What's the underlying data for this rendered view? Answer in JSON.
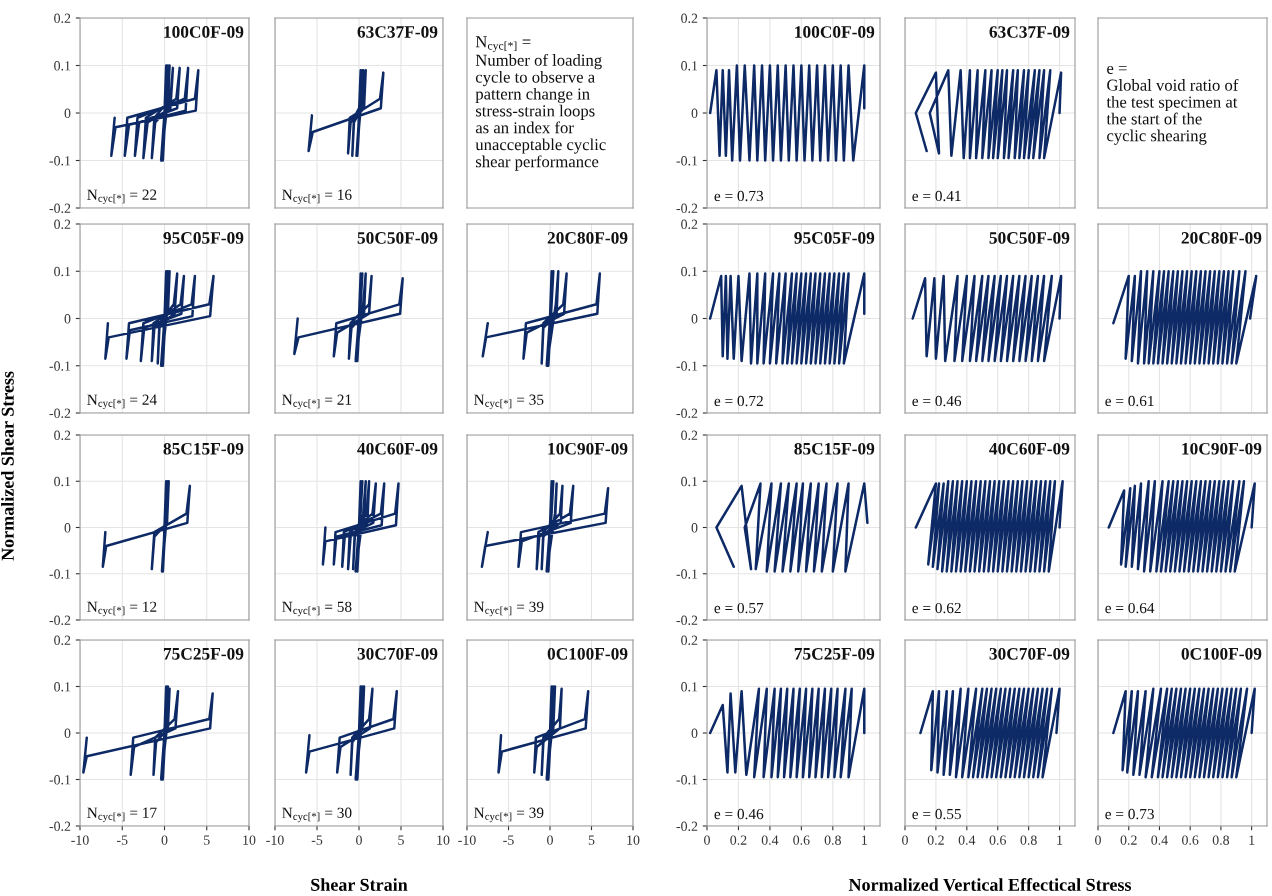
{
  "chart_data": [
    {
      "type": "line",
      "title": "100C0F-09",
      "annotations": [
        "N$_{cyc[*]}$ = 22"
      ],
      "xlim": [
        -10,
        10
      ],
      "ylim": [
        -0.2,
        0.2
      ],
      "xticks": [
        -10,
        -5,
        0,
        5,
        10
      ],
      "yticks": [
        -0.2,
        -0.1,
        0,
        0.1,
        0.2
      ],
      "grid": true,
      "tick_labels": "y",
      "color": "#0d2a66",
      "x": [
        0,
        0.2,
        -0.2,
        0.4,
        -0.4,
        0.4,
        0.6,
        0.4,
        -1.1,
        -1.5,
        -1.2,
        0.7,
        1.0,
        0.7,
        -2.0,
        -2.5,
        -2.2,
        1.4,
        1.8,
        1.5,
        -3.0,
        -3.5,
        -3.2,
        2.4,
        2.8,
        2.5,
        -4.2,
        -4.7,
        -4.4,
        3.6,
        4.0,
        3.7,
        -5.8,
        -6.3,
        -5.9
      ],
      "values": [
        0,
        0.1,
        -0.1,
        0.1,
        -0.1,
        0.03,
        0.1,
        0.01,
        -0.02,
        -0.095,
        -0.01,
        0.03,
        0.095,
        0.01,
        -0.02,
        -0.095,
        -0.01,
        0.03,
        0.095,
        0.01,
        -0.02,
        -0.09,
        -0.01,
        0.03,
        0.095,
        0.005,
        -0.025,
        -0.09,
        -0.01,
        0.03,
        0.09,
        0.005,
        -0.03,
        -0.09,
        -0.01
      ]
    },
    {
      "type": "line",
      "title": "63C37F-09",
      "annotations": [
        "N$_{cyc[*]}$ = 16"
      ],
      "xlim": [
        -10,
        10
      ],
      "ylim": [
        -0.2,
        0.2
      ],
      "xticks": [
        -10,
        -5,
        0,
        5,
        10
      ],
      "yticks": [
        -0.2,
        -0.1,
        0,
        0.1,
        0.2
      ],
      "grid": true,
      "tick_labels": false,
      "color": "#0d2a66",
      "x": [
        0,
        0.2,
        -0.2,
        0.4,
        -0.3,
        0.3,
        0.5,
        0.3,
        -0.6,
        -0.8,
        -0.6,
        0.6,
        0.8,
        0.6,
        -1.0,
        -1.3,
        -1.1,
        2.5,
        2.9,
        2.6,
        -5.5,
        -6.0,
        -5.6
      ],
      "values": [
        0,
        0.09,
        -0.09,
        0.09,
        -0.09,
        0.03,
        0.09,
        0.01,
        -0.02,
        -0.09,
        -0.01,
        0.03,
        0.09,
        0.01,
        -0.02,
        -0.085,
        -0.01,
        0.03,
        0.085,
        0.01,
        -0.04,
        -0.08,
        -0.005
      ]
    },
    {
      "type": "other",
      "annotations": [
        "N$_{cyc[*]}$ =",
        "Number of loading\ncycle to observe a\npattern change in\nstress-strain loops\nas an index for\nunacceptable cyclic\nshear performance"
      ]
    },
    {
      "type": "line",
      "title": "100C0F-09",
      "annotations": [
        "e = 0.73"
      ],
      "xlim": [
        0,
        1.1
      ],
      "ylim": [
        -0.2,
        0.2
      ],
      "xticks": [
        0,
        0.2,
        0.4,
        0.6,
        0.8,
        1
      ],
      "yticks": [
        -0.2,
        -0.1,
        0,
        0.1,
        0.2
      ],
      "grid": true,
      "tick_labels": "y",
      "color": "#0d2a66",
      "x": [
        1.0,
        1.0,
        0.93,
        0.9,
        0.87,
        0.85,
        0.82,
        0.8,
        0.77,
        0.75,
        0.72,
        0.7,
        0.67,
        0.65,
        0.62,
        0.6,
        0.57,
        0.55,
        0.52,
        0.5,
        0.47,
        0.45,
        0.42,
        0.4,
        0.37,
        0.35,
        0.32,
        0.3,
        0.27,
        0.24,
        0.21,
        0.19,
        0.16,
        0.14,
        0.12,
        0.1,
        0.08,
        0.06,
        0.02
      ],
      "values": [
        0.01,
        0.1,
        -0.1,
        0.1,
        -0.1,
        0.1,
        -0.1,
        0.1,
        -0.1,
        0.1,
        -0.1,
        0.1,
        -0.1,
        0.1,
        -0.1,
        0.1,
        -0.1,
        0.1,
        -0.1,
        0.1,
        -0.1,
        0.1,
        -0.1,
        0.1,
        -0.1,
        0.1,
        -0.1,
        0.1,
        -0.1,
        0.1,
        -0.1,
        0.1,
        -0.1,
        0.09,
        -0.09,
        0.09,
        -0.09,
        0.09,
        0.0
      ]
    },
    {
      "type": "line",
      "title": "63C37F-09",
      "annotations": [
        "e = 0.41"
      ],
      "xlim": [
        0,
        1.1
      ],
      "ylim": [
        -0.2,
        0.2
      ],
      "xticks": [
        0,
        0.2,
        0.4,
        0.6,
        0.8,
        1
      ],
      "yticks": [
        -0.2,
        -0.1,
        0,
        0.1,
        0.2
      ],
      "grid": true,
      "tick_labels": false,
      "color": "#0d2a66",
      "x": [
        1.0,
        1.01,
        0.9,
        0.94,
        0.87,
        0.9,
        0.83,
        0.87,
        0.8,
        0.84,
        0.77,
        0.8,
        0.74,
        0.77,
        0.71,
        0.73,
        0.67,
        0.7,
        0.64,
        0.66,
        0.6,
        0.63,
        0.57,
        0.6,
        0.54,
        0.56,
        0.5,
        0.52,
        0.46,
        0.47,
        0.42,
        0.42,
        0.38,
        0.36,
        0.3,
        0.28,
        0.16,
        0.22,
        0.2,
        0.07,
        0.14
      ],
      "values": [
        0.0,
        0.085,
        -0.095,
        0.09,
        -0.095,
        0.09,
        -0.095,
        0.09,
        -0.095,
        0.09,
        -0.095,
        0.09,
        -0.095,
        0.09,
        -0.095,
        0.09,
        -0.095,
        0.09,
        -0.095,
        0.09,
        -0.095,
        0.09,
        -0.095,
        0.09,
        -0.095,
        0.09,
        -0.095,
        0.09,
        -0.095,
        0.09,
        -0.095,
        0.09,
        -0.095,
        0.09,
        -0.09,
        0.09,
        0.0,
        -0.085,
        0.085,
        0.0,
        -0.08
      ]
    },
    {
      "type": "other",
      "annotations": [
        "e =",
        "Global void ratio of\nthe test specimen at\nthe start of the\ncyclic shearing"
      ]
    },
    {
      "type": "line",
      "title": "95C05F-09",
      "annotations": [
        "N$_{cyc[*]}$ = 24"
      ],
      "ylabel": "Normalized Shear Stress",
      "xlim": [
        -10,
        10
      ],
      "ylim": [
        -0.2,
        0.2
      ],
      "xticks": [
        -10,
        -5,
        0,
        5,
        10
      ],
      "yticks": [
        -0.2,
        -0.1,
        0,
        0.1,
        0.2
      ],
      "grid": true,
      "tick_labels": "y",
      "color": "#0d2a66",
      "x": [
        0,
        0.2,
        -0.2,
        0.4,
        -0.4,
        0.4,
        0.6,
        0.4,
        -0.6,
        -0.8,
        -0.6,
        1.1,
        1.5,
        1.2,
        -1.2,
        -1.5,
        -1.3,
        1.9,
        2.3,
        2.0,
        -2.4,
        -2.8,
        -2.5,
        3.2,
        3.6,
        3.3,
        -4.1,
        -4.5,
        -4.2,
        5.3,
        5.8,
        5.4,
        -6.6,
        -7.0,
        -6.7
      ],
      "values": [
        0,
        0.1,
        -0.1,
        0.1,
        -0.1,
        0.03,
        0.1,
        0.01,
        -0.02,
        -0.095,
        -0.01,
        0.03,
        0.095,
        0.01,
        -0.02,
        -0.09,
        -0.01,
        0.03,
        0.09,
        0.01,
        -0.02,
        -0.09,
        -0.01,
        0.03,
        0.09,
        0.005,
        -0.025,
        -0.085,
        -0.01,
        0.03,
        0.09,
        0.005,
        -0.04,
        -0.085,
        -0.01
      ]
    },
    {
      "type": "line",
      "title": "50C50F-09",
      "annotations": [
        "N$_{cyc[*]}$ = 21"
      ],
      "xlim": [
        -10,
        10
      ],
      "ylim": [
        -0.2,
        0.2
      ],
      "xticks": [
        -10,
        -5,
        0,
        5,
        10
      ],
      "yticks": [
        -0.2,
        -0.1,
        0,
        0.1,
        0.2
      ],
      "grid": true,
      "tick_labels": false,
      "color": "#0d2a66",
      "x": [
        0,
        0.2,
        -0.2,
        0.4,
        -0.4,
        0.5,
        0.8,
        0.6,
        -0.9,
        -1.2,
        -1.0,
        1.2,
        1.5,
        1.2,
        -2.6,
        -3.0,
        -2.7,
        4.8,
        5.2,
        4.9,
        -7.2,
        -7.7,
        -7.3
      ],
      "values": [
        0,
        0.095,
        -0.09,
        0.095,
        -0.09,
        0.03,
        0.095,
        0.01,
        -0.02,
        -0.085,
        -0.01,
        0.03,
        0.09,
        0.01,
        -0.03,
        -0.08,
        -0.01,
        0.03,
        0.085,
        0.01,
        -0.04,
        -0.075,
        0.0
      ]
    },
    {
      "type": "line",
      "title": "20C80F-09",
      "annotations": [
        "N$_{cyc[*]}$ = 35"
      ],
      "xlim": [
        -10,
        10
      ],
      "ylim": [
        -0.2,
        0.2
      ],
      "xticks": [
        -10,
        -5,
        0,
        5,
        10
      ],
      "yticks": [
        -0.2,
        -0.1,
        0,
        0.1,
        0.2
      ],
      "grid": true,
      "tick_labels": false,
      "color": "#0d2a66",
      "x": [
        0,
        0.2,
        -0.2,
        0.4,
        -0.4,
        0.7,
        1.0,
        0.8,
        -0.8,
        -1.0,
        -0.8,
        1.6,
        2.0,
        1.7,
        -2.8,
        -3.2,
        -2.9,
        5.6,
        6.0,
        5.7,
        -7.7,
        -8.1,
        -7.5
      ],
      "values": [
        0,
        0.1,
        -0.1,
        0.1,
        -0.1,
        0.03,
        0.1,
        0.01,
        -0.02,
        -0.095,
        -0.01,
        0.03,
        0.095,
        0.01,
        -0.03,
        -0.085,
        -0.01,
        0.03,
        0.095,
        0.01,
        -0.04,
        -0.08,
        -0.01
      ]
    },
    {
      "type": "line",
      "title": "95C05F-09",
      "annotations": [
        "e = 0.72"
      ],
      "xlim": [
        0,
        1.1
      ],
      "ylim": [
        -0.2,
        0.2
      ],
      "xticks": [
        0,
        0.2,
        0.4,
        0.6,
        0.8,
        1
      ],
      "yticks": [
        -0.2,
        -0.1,
        0,
        0.1,
        0.2
      ],
      "grid": true,
      "tick_labels": "y",
      "color": "#0d2a66",
      "x": [
        1.0,
        1.0,
        0.87,
        0.9,
        0.84,
        0.87,
        0.81,
        0.84,
        0.78,
        0.81,
        0.75,
        0.78,
        0.72,
        0.75,
        0.69,
        0.72,
        0.66,
        0.69,
        0.63,
        0.66,
        0.6,
        0.63,
        0.57,
        0.6,
        0.54,
        0.57,
        0.51,
        0.54,
        0.48,
        0.5,
        0.44,
        0.46,
        0.4,
        0.42,
        0.36,
        0.37,
        0.32,
        0.32,
        0.28,
        0.27,
        0.22,
        0.2,
        0.17,
        0.15,
        0.13,
        0.12,
        0.1,
        0.09,
        0.02
      ],
      "values": [
        0.01,
        0.095,
        -0.095,
        0.095,
        -0.095,
        0.095,
        -0.095,
        0.095,
        -0.095,
        0.095,
        -0.095,
        0.095,
        -0.095,
        0.095,
        -0.095,
        0.095,
        -0.095,
        0.095,
        -0.095,
        0.095,
        -0.095,
        0.095,
        -0.095,
        0.095,
        -0.095,
        0.095,
        -0.095,
        0.095,
        -0.095,
        0.095,
        -0.095,
        0.095,
        -0.095,
        0.095,
        -0.095,
        0.095,
        -0.095,
        0.095,
        -0.095,
        0.095,
        -0.09,
        0.09,
        -0.085,
        0.09,
        -0.085,
        0.09,
        -0.08,
        0.09,
        0.0
      ]
    },
    {
      "type": "line",
      "title": "50C50F-09",
      "annotations": [
        "e = 0.46"
      ],
      "xlim": [
        0,
        1.1
      ],
      "ylim": [
        -0.2,
        0.2
      ],
      "xticks": [
        0,
        0.2,
        0.4,
        0.6,
        0.8,
        1
      ],
      "yticks": [
        -0.2,
        -0.1,
        0,
        0.1,
        0.2
      ],
      "grid": true,
      "tick_labels": false,
      "color": "#0d2a66",
      "x": [
        1.0,
        1.01,
        0.9,
        0.95,
        0.86,
        0.9,
        0.82,
        0.86,
        0.78,
        0.82,
        0.74,
        0.78,
        0.7,
        0.74,
        0.66,
        0.7,
        0.62,
        0.66,
        0.58,
        0.62,
        0.54,
        0.58,
        0.5,
        0.54,
        0.46,
        0.5,
        0.42,
        0.45,
        0.37,
        0.4,
        0.32,
        0.34,
        0.26,
        0.25,
        0.2,
        0.19,
        0.14,
        0.13,
        0.05
      ],
      "values": [
        0.0,
        0.09,
        -0.09,
        0.09,
        -0.09,
        0.09,
        -0.09,
        0.09,
        -0.09,
        0.09,
        -0.09,
        0.09,
        -0.09,
        0.09,
        -0.09,
        0.09,
        -0.09,
        0.09,
        -0.09,
        0.09,
        -0.09,
        0.09,
        -0.09,
        0.09,
        -0.09,
        0.09,
        -0.09,
        0.09,
        -0.09,
        0.09,
        -0.09,
        0.09,
        -0.09,
        0.09,
        -0.085,
        0.085,
        -0.08,
        0.085,
        0.0
      ]
    },
    {
      "type": "line",
      "title": "20C80F-09",
      "annotations": [
        "e = 0.61"
      ],
      "xlim": [
        0,
        1.1
      ],
      "ylim": [
        -0.2,
        0.2
      ],
      "xticks": [
        0,
        0.2,
        0.4,
        0.6,
        0.8,
        1
      ],
      "yticks": [
        -0.2,
        -0.1,
        0,
        0.1,
        0.2
      ],
      "grid": true,
      "tick_labels": false,
      "color": "#0d2a66",
      "x": [
        0.99,
        1.03,
        0.9,
        0.96,
        0.87,
        0.92,
        0.84,
        0.88,
        0.81,
        0.85,
        0.78,
        0.82,
        0.75,
        0.79,
        0.72,
        0.76,
        0.69,
        0.73,
        0.66,
        0.7,
        0.63,
        0.67,
        0.6,
        0.64,
        0.57,
        0.61,
        0.54,
        0.58,
        0.51,
        0.55,
        0.48,
        0.52,
        0.45,
        0.49,
        0.42,
        0.46,
        0.39,
        0.43,
        0.36,
        0.4,
        0.33,
        0.36,
        0.3,
        0.32,
        0.26,
        0.28,
        0.22,
        0.24,
        0.18,
        0.2,
        0.1
      ],
      "values": [
        0.0,
        0.09,
        -0.095,
        0.1,
        -0.095,
        0.1,
        -0.095,
        0.1,
        -0.095,
        0.1,
        -0.095,
        0.1,
        -0.095,
        0.1,
        -0.095,
        0.1,
        -0.095,
        0.1,
        -0.095,
        0.1,
        -0.095,
        0.1,
        -0.095,
        0.1,
        -0.095,
        0.1,
        -0.095,
        0.1,
        -0.095,
        0.1,
        -0.095,
        0.1,
        -0.095,
        0.1,
        -0.095,
        0.1,
        -0.095,
        0.1,
        -0.095,
        0.1,
        -0.095,
        0.1,
        -0.095,
        0.1,
        -0.095,
        0.1,
        -0.09,
        0.09,
        -0.085,
        0.09,
        -0.01
      ]
    },
    {
      "type": "line",
      "title": "85C15F-09",
      "annotations": [
        "N$_{cyc[*]}$ = 12"
      ],
      "xlim": [
        -10,
        10
      ],
      "ylim": [
        -0.2,
        0.2
      ],
      "xticks": [
        -10,
        -5,
        0,
        5,
        10
      ],
      "yticks": [
        -0.2,
        -0.1,
        0,
        0.1,
        0.2
      ],
      "grid": true,
      "tick_labels": "y",
      "color": "#0d2a66",
      "x": [
        0,
        0.2,
        -0.2,
        0.4,
        -0.3,
        0.3,
        0.5,
        0.3,
        -1.2,
        -1.5,
        -1.2,
        2.6,
        3.0,
        2.7,
        -6.9,
        -7.3,
        -7.0
      ],
      "values": [
        0,
        0.1,
        -0.095,
        0.1,
        -0.095,
        0.03,
        0.1,
        0.01,
        -0.02,
        -0.09,
        -0.01,
        0.03,
        0.09,
        0.01,
        -0.04,
        -0.085,
        -0.01
      ]
    },
    {
      "type": "line",
      "title": "40C60F-09",
      "annotations": [
        "N$_{cyc[*]}$ = 58"
      ],
      "xlim": [
        -10,
        10
      ],
      "ylim": [
        -0.2,
        0.2
      ],
      "xticks": [
        -10,
        -5,
        0,
        5,
        10
      ],
      "yticks": [
        -0.2,
        -0.1,
        0,
        0.1,
        0.2
      ],
      "grid": true,
      "tick_labels": false,
      "color": "#0d2a66",
      "x": [
        0,
        0.2,
        -0.2,
        0.4,
        -0.4,
        0.5,
        0.8,
        0.6,
        -0.5,
        -0.7,
        -0.5,
        0.9,
        1.2,
        1.0,
        -1.0,
        -1.3,
        -1.1,
        1.6,
        2.0,
        1.7,
        -1.7,
        -2.0,
        -1.8,
        2.6,
        3.0,
        2.7,
        -2.7,
        -3.0,
        -2.8,
        4.3,
        4.7,
        4.4,
        -4.0,
        -4.3,
        -4.0
      ],
      "values": [
        0,
        0.1,
        -0.095,
        0.1,
        -0.095,
        0.03,
        0.1,
        0.01,
        -0.02,
        -0.09,
        -0.01,
        0.03,
        0.1,
        0.01,
        -0.02,
        -0.09,
        -0.01,
        0.03,
        0.095,
        0.01,
        -0.02,
        -0.085,
        -0.01,
        0.03,
        0.095,
        0.005,
        -0.02,
        -0.08,
        -0.01,
        0.03,
        0.095,
        0.005,
        -0.03,
        -0.08,
        0.0
      ]
    },
    {
      "type": "line",
      "title": "10C90F-09",
      "annotations": [
        "N$_{cyc[*]}$ = 39"
      ],
      "xlim": [
        -10,
        10
      ],
      "ylim": [
        -0.2,
        0.2
      ],
      "xticks": [
        -10,
        -5,
        0,
        5,
        10
      ],
      "yticks": [
        -0.2,
        -0.1,
        0,
        0.1,
        0.2
      ],
      "grid": true,
      "tick_labels": false,
      "color": "#0d2a66",
      "x": [
        0,
        0.2,
        -0.2,
        0.4,
        -0.4,
        0.6,
        0.8,
        0.6,
        -0.8,
        -1.0,
        -0.8,
        1.2,
        1.5,
        1.3,
        -1.3,
        -1.6,
        -1.4,
        2.4,
        2.8,
        2.5,
        -3.4,
        -3.8,
        -3.5,
        6.6,
        7.0,
        6.7,
        -7.8,
        -8.2,
        -7.5
      ],
      "values": [
        0,
        0.1,
        -0.095,
        0.1,
        -0.095,
        0.03,
        0.095,
        0.01,
        -0.02,
        -0.09,
        -0.01,
        0.03,
        0.09,
        0.01,
        -0.02,
        -0.09,
        -0.01,
        0.03,
        0.09,
        0.01,
        -0.03,
        -0.085,
        -0.01,
        0.03,
        0.085,
        0.01,
        -0.04,
        -0.085,
        -0.01
      ]
    },
    {
      "type": "line",
      "title": "85C15F-09",
      "annotations": [
        "e = 0.57"
      ],
      "xlim": [
        0,
        1.1
      ],
      "ylim": [
        -0.2,
        0.2
      ],
      "xticks": [
        0,
        0.2,
        0.4,
        0.6,
        0.8,
        1
      ],
      "yticks": [
        -0.2,
        -0.1,
        0,
        0.1,
        0.2
      ],
      "grid": true,
      "tick_labels": "y",
      "color": "#0d2a66",
      "x": [
        1.02,
        1.0,
        0.88,
        0.9,
        0.8,
        0.83,
        0.73,
        0.76,
        0.68,
        0.71,
        0.63,
        0.66,
        0.58,
        0.61,
        0.53,
        0.57,
        0.48,
        0.52,
        0.43,
        0.47,
        0.38,
        0.41,
        0.31,
        0.34,
        0.24,
        0.28,
        0.22,
        0.06,
        0.17
      ],
      "values": [
        0.01,
        0.095,
        -0.095,
        0.095,
        -0.095,
        0.095,
        -0.095,
        0.095,
        -0.095,
        0.095,
        -0.095,
        0.095,
        -0.095,
        0.095,
        -0.095,
        0.095,
        -0.095,
        0.095,
        -0.095,
        0.095,
        -0.095,
        0.095,
        -0.09,
        0.095,
        0.0,
        -0.09,
        0.09,
        0.0,
        -0.085
      ]
    },
    {
      "type": "line",
      "title": "40C60F-09",
      "annotations": [
        "e = 0.62"
      ],
      "xlim": [
        0,
        1.1
      ],
      "ylim": [
        -0.2,
        0.2
      ],
      "xticks": [
        0,
        0.2,
        0.4,
        0.6,
        0.8,
        1
      ],
      "yticks": [
        -0.2,
        -0.1,
        0,
        0.1,
        0.2
      ],
      "grid": true,
      "tick_labels": false,
      "color": "#0d2a66",
      "x": [
        1.0,
        1.02,
        0.93,
        0.97,
        0.9,
        0.94,
        0.87,
        0.91,
        0.84,
        0.88,
        0.81,
        0.85,
        0.78,
        0.82,
        0.75,
        0.79,
        0.72,
        0.76,
        0.69,
        0.73,
        0.66,
        0.7,
        0.63,
        0.67,
        0.6,
        0.64,
        0.57,
        0.61,
        0.54,
        0.58,
        0.51,
        0.55,
        0.48,
        0.52,
        0.45,
        0.49,
        0.42,
        0.46,
        0.39,
        0.43,
        0.36,
        0.4,
        0.33,
        0.37,
        0.3,
        0.34,
        0.27,
        0.31,
        0.24,
        0.28,
        0.21,
        0.25,
        0.18,
        0.22,
        0.15,
        0.2,
        0.07
      ],
      "values": [
        0.0,
        0.1,
        -0.095,
        0.1,
        -0.095,
        0.1,
        -0.095,
        0.1,
        -0.095,
        0.1,
        -0.095,
        0.1,
        -0.095,
        0.1,
        -0.095,
        0.1,
        -0.095,
        0.1,
        -0.095,
        0.1,
        -0.095,
        0.1,
        -0.095,
        0.1,
        -0.095,
        0.1,
        -0.095,
        0.1,
        -0.095,
        0.1,
        -0.095,
        0.1,
        -0.095,
        0.1,
        -0.095,
        0.1,
        -0.095,
        0.1,
        -0.095,
        0.1,
        -0.095,
        0.1,
        -0.095,
        0.1,
        -0.095,
        0.1,
        -0.095,
        0.1,
        -0.095,
        0.1,
        -0.09,
        0.095,
        -0.085,
        0.095,
        -0.08,
        0.095,
        0.0
      ]
    },
    {
      "type": "line",
      "title": "10C90F-09",
      "annotations": [
        "e = 0.64"
      ],
      "xlim": [
        0,
        1.1
      ],
      "ylim": [
        -0.2,
        0.2
      ],
      "xticks": [
        0,
        0.2,
        0.4,
        0.6,
        0.8,
        1
      ],
      "yticks": [
        -0.2,
        -0.1,
        0,
        0.1,
        0.2
      ],
      "grid": true,
      "tick_labels": false,
      "color": "#0d2a66",
      "x": [
        1.0,
        1.02,
        0.89,
        0.95,
        0.86,
        0.92,
        0.83,
        0.88,
        0.8,
        0.85,
        0.77,
        0.82,
        0.74,
        0.79,
        0.71,
        0.76,
        0.68,
        0.73,
        0.65,
        0.7,
        0.62,
        0.67,
        0.59,
        0.64,
        0.56,
        0.61,
        0.53,
        0.58,
        0.5,
        0.55,
        0.47,
        0.52,
        0.44,
        0.49,
        0.41,
        0.46,
        0.38,
        0.42,
        0.34,
        0.37,
        0.3,
        0.33,
        0.26,
        0.28,
        0.22,
        0.24,
        0.18,
        0.21,
        0.15,
        0.17,
        0.07
      ],
      "values": [
        0.0,
        0.095,
        -0.095,
        0.1,
        -0.095,
        0.1,
        -0.095,
        0.1,
        -0.095,
        0.1,
        -0.095,
        0.1,
        -0.095,
        0.1,
        -0.095,
        0.1,
        -0.095,
        0.1,
        -0.095,
        0.1,
        -0.095,
        0.1,
        -0.095,
        0.1,
        -0.095,
        0.1,
        -0.095,
        0.1,
        -0.095,
        0.1,
        -0.095,
        0.1,
        -0.095,
        0.1,
        -0.095,
        0.1,
        -0.095,
        0.1,
        -0.095,
        0.1,
        -0.095,
        0.1,
        -0.09,
        0.095,
        -0.085,
        0.09,
        -0.085,
        0.085,
        -0.08,
        0.08,
        0.0
      ]
    },
    {
      "type": "line",
      "title": "75C25F-09",
      "annotations": [
        "N$_{cyc[*]}$ = 17"
      ],
      "xlim": [
        -10,
        10
      ],
      "ylim": [
        -0.2,
        0.2
      ],
      "xticks": [
        -10,
        -5,
        0,
        5,
        10
      ],
      "yticks": [
        -0.2,
        -0.1,
        0,
        0.1,
        0.2
      ],
      "grid": true,
      "color": "#0d2a66",
      "x": [
        0,
        0.2,
        -0.2,
        0.4,
        -0.4,
        0.4,
        0.6,
        0.4,
        -1.0,
        -1.3,
        -1.1,
        1.2,
        1.6,
        1.3,
        -3.6,
        -4.0,
        -3.7,
        5.3,
        5.7,
        5.4,
        -9.2,
        -9.6,
        -9.2
      ],
      "values": [
        0,
        0.1,
        -0.1,
        0.1,
        -0.1,
        0.03,
        0.095,
        0.01,
        -0.02,
        -0.09,
        -0.01,
        0.03,
        0.09,
        0.01,
        -0.03,
        -0.09,
        -0.01,
        0.03,
        0.085,
        0.01,
        -0.05,
        -0.085,
        -0.01
      ]
    },
    {
      "type": "line",
      "title": "30C70F-09",
      "annotations": [
        "N$_{cyc[*]}$ = 30"
      ],
      "xlabel": "Shear Strain",
      "xlim": [
        -10,
        10
      ],
      "ylim": [
        -0.2,
        0.2
      ],
      "xticks": [
        -10,
        -5,
        0,
        5,
        10
      ],
      "yticks": [
        -0.2,
        -0.1,
        0,
        0.1,
        0.2
      ],
      "grid": true,
      "tick_labels": "x",
      "color": "#0d2a66",
      "x": [
        0,
        0.2,
        -0.2,
        0.4,
        -0.4,
        0.4,
        0.6,
        0.4,
        -0.8,
        -1.0,
        -0.8,
        1.2,
        1.6,
        1.3,
        -2.2,
        -2.6,
        -2.3,
        4.1,
        4.5,
        4.2,
        -5.9,
        -6.3,
        -5.9
      ],
      "values": [
        0,
        0.1,
        -0.1,
        0.1,
        -0.1,
        0.03,
        0.1,
        0.01,
        -0.02,
        -0.09,
        -0.01,
        0.03,
        0.095,
        0.01,
        -0.03,
        -0.085,
        -0.01,
        0.03,
        0.09,
        0.01,
        -0.04,
        -0.085,
        -0.005
      ]
    },
    {
      "type": "line",
      "title": "0C100F-09",
      "annotations": [
        "N$_{cyc[*]}$ = 39"
      ],
      "xlim": [
        -10,
        10
      ],
      "ylim": [
        -0.2,
        0.2
      ],
      "xticks": [
        -10,
        -5,
        0,
        5,
        10
      ],
      "yticks": [
        -0.2,
        -0.1,
        0,
        0.1,
        0.2
      ],
      "grid": true,
      "tick_labels": "x",
      "color": "#0d2a66",
      "x": [
        0,
        0.2,
        -0.2,
        0.4,
        -0.4,
        0.4,
        0.6,
        0.4,
        -0.8,
        -1.0,
        -0.8,
        1.1,
        1.4,
        1.2,
        -1.6,
        -1.9,
        -1.7,
        4.2,
        4.6,
        4.3,
        -5.8,
        -6.2,
        -5.9
      ],
      "values": [
        0,
        0.1,
        -0.1,
        0.1,
        -0.1,
        0.03,
        0.1,
        0.01,
        -0.02,
        -0.09,
        -0.01,
        0.03,
        0.095,
        0.01,
        -0.03,
        -0.085,
        -0.01,
        0.03,
        0.09,
        0.01,
        -0.04,
        -0.085,
        -0.005
      ]
    },
    {
      "type": "line",
      "title": "75C25F-09",
      "annotations": [
        "e = 0.46"
      ],
      "xlim": [
        0,
        1.1
      ],
      "ylim": [
        -0.2,
        0.2
      ],
      "xticks": [
        0,
        0.2,
        0.4,
        0.6,
        0.8,
        1
      ],
      "yticks": [
        -0.2,
        -0.1,
        0,
        0.1,
        0.2
      ],
      "grid": true,
      "color": "#0d2a66",
      "x": [
        1.0,
        1.0,
        0.9,
        0.92,
        0.85,
        0.88,
        0.81,
        0.83,
        0.77,
        0.79,
        0.73,
        0.75,
        0.69,
        0.71,
        0.65,
        0.67,
        0.61,
        0.63,
        0.57,
        0.59,
        0.53,
        0.55,
        0.49,
        0.51,
        0.45,
        0.47,
        0.41,
        0.43,
        0.36,
        0.38,
        0.3,
        0.33,
        0.25,
        0.22,
        0.18,
        0.15,
        0.13,
        0.1,
        0.02
      ],
      "values": [
        0.0,
        0.095,
        -0.095,
        0.095,
        -0.095,
        0.095,
        -0.095,
        0.095,
        -0.095,
        0.095,
        -0.095,
        0.095,
        -0.095,
        0.095,
        -0.095,
        0.095,
        -0.095,
        0.095,
        -0.095,
        0.095,
        -0.095,
        0.095,
        -0.095,
        0.095,
        -0.095,
        0.095,
        -0.095,
        0.095,
        -0.095,
        0.095,
        -0.095,
        0.095,
        -0.09,
        0.09,
        -0.085,
        0.085,
        -0.085,
        0.06,
        0.0
      ]
    },
    {
      "type": "line",
      "title": "30C70F-09",
      "annotations": [
        "e = 0.55"
      ],
      "xlabel": "Normalized Vertical Effectical Stress",
      "xlim": [
        0,
        1.1
      ],
      "ylim": [
        -0.2,
        0.2
      ],
      "xticks": [
        0,
        0.2,
        0.4,
        0.6,
        0.8,
        1
      ],
      "yticks": [
        -0.2,
        -0.1,
        0,
        0.1,
        0.2
      ],
      "grid": true,
      "tick_labels": "x",
      "color": "#0d2a66",
      "x": [
        0.98,
        1.0,
        0.89,
        0.95,
        0.86,
        0.92,
        0.83,
        0.89,
        0.8,
        0.86,
        0.77,
        0.83,
        0.74,
        0.8,
        0.71,
        0.77,
        0.68,
        0.74,
        0.65,
        0.71,
        0.62,
        0.68,
        0.59,
        0.65,
        0.56,
        0.62,
        0.53,
        0.59,
        0.5,
        0.56,
        0.47,
        0.53,
        0.44,
        0.5,
        0.41,
        0.46,
        0.37,
        0.41,
        0.33,
        0.36,
        0.29,
        0.31,
        0.25,
        0.27,
        0.21,
        0.22,
        0.17,
        0.18,
        0.1
      ],
      "values": [
        0.0,
        0.095,
        -0.095,
        0.095,
        -0.095,
        0.095,
        -0.095,
        0.095,
        -0.095,
        0.095,
        -0.095,
        0.095,
        -0.095,
        0.095,
        -0.095,
        0.095,
        -0.095,
        0.095,
        -0.095,
        0.095,
        -0.095,
        0.095,
        -0.095,
        0.095,
        -0.095,
        0.095,
        -0.095,
        0.095,
        -0.095,
        0.095,
        -0.095,
        0.095,
        -0.095,
        0.095,
        -0.095,
        0.095,
        -0.095,
        0.095,
        -0.095,
        0.095,
        -0.09,
        0.09,
        -0.09,
        0.09,
        -0.085,
        0.09,
        -0.08,
        0.09,
        0.0
      ]
    },
    {
      "type": "line",
      "title": "0C100F-09",
      "annotations": [
        "e = 0.73"
      ],
      "xlim": [
        0,
        1.1
      ],
      "ylim": [
        -0.2,
        0.2
      ],
      "xticks": [
        0,
        0.2,
        0.4,
        0.6,
        0.8,
        1
      ],
      "yticks": [
        -0.2,
        -0.1,
        0,
        0.1,
        0.2
      ],
      "grid": true,
      "tick_labels": "x",
      "color": "#0d2a66",
      "x": [
        1.0,
        1.02,
        0.9,
        0.97,
        0.87,
        0.93,
        0.84,
        0.9,
        0.81,
        0.87,
        0.78,
        0.84,
        0.75,
        0.81,
        0.72,
        0.78,
        0.69,
        0.75,
        0.66,
        0.72,
        0.63,
        0.69,
        0.6,
        0.66,
        0.57,
        0.63,
        0.54,
        0.6,
        0.51,
        0.57,
        0.48,
        0.54,
        0.45,
        0.51,
        0.42,
        0.48,
        0.39,
        0.45,
        0.35,
        0.41,
        0.31,
        0.36,
        0.27,
        0.31,
        0.23,
        0.26,
        0.19,
        0.22,
        0.16,
        0.18,
        0.1
      ],
      "values": [
        0.0,
        0.095,
        -0.095,
        0.095,
        -0.095,
        0.095,
        -0.095,
        0.095,
        -0.095,
        0.095,
        -0.095,
        0.095,
        -0.095,
        0.095,
        -0.095,
        0.095,
        -0.095,
        0.095,
        -0.095,
        0.095,
        -0.095,
        0.095,
        -0.095,
        0.095,
        -0.095,
        0.095,
        -0.095,
        0.095,
        -0.095,
        0.095,
        -0.095,
        0.095,
        -0.095,
        0.095,
        -0.095,
        0.095,
        -0.095,
        0.095,
        -0.095,
        0.095,
        -0.095,
        0.095,
        -0.09,
        0.09,
        -0.09,
        0.09,
        -0.085,
        0.09,
        -0.08,
        0.09,
        0.0
      ]
    }
  ]
}
